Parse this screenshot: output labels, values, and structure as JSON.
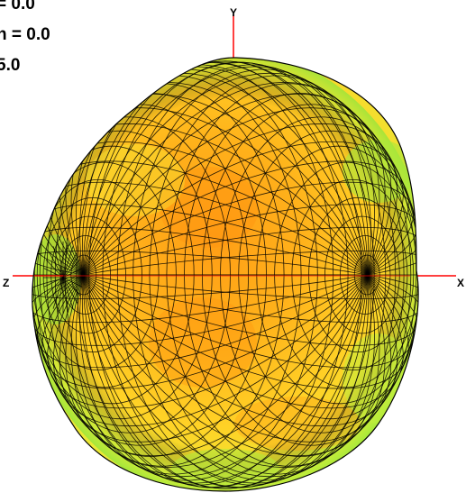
{
  "view": {
    "readouts": [
      "= 0.0",
      "n = 0.0",
      "5.0"
    ]
  },
  "axes": {
    "x_label": "X",
    "y_label": "Y",
    "z_label": "Z",
    "axis_color": "#ff0000"
  },
  "pattern": {
    "mesh_color": "#000000",
    "colormap": [
      "#ff9a14",
      "#ffc81e",
      "#f3f03a",
      "#c8f03c",
      "#8ee63c"
    ]
  }
}
